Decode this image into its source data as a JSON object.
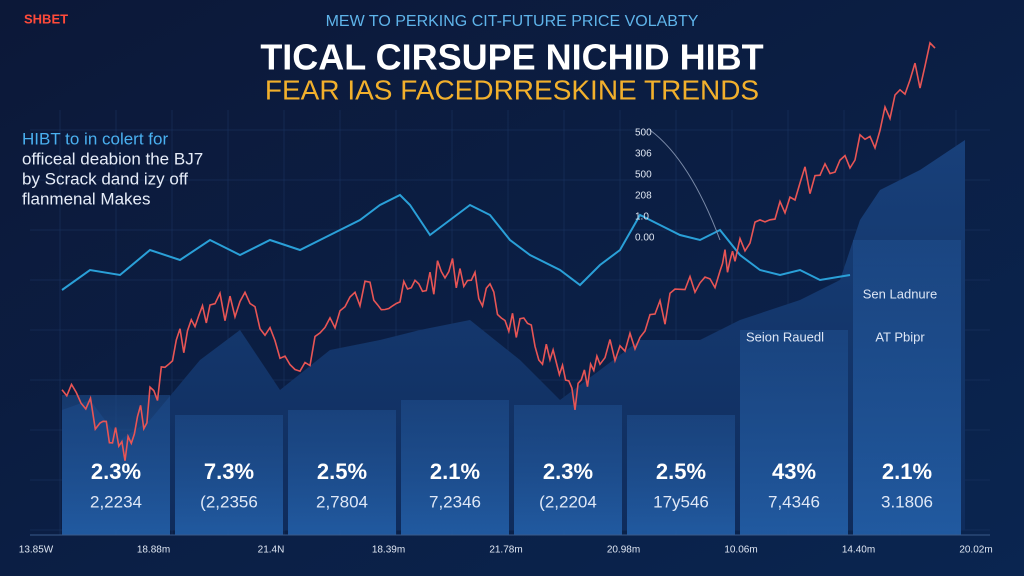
{
  "logo": "SHBET",
  "header": {
    "kicker": "MEW TO PERKING CIT-FUTURE PRICE VOLABTY",
    "title": "TICAL CIRSUPE NICHID HIBT",
    "subtitle": "FEAR IAS FACEDRRESKINE TRENDS"
  },
  "side_text": [
    "HIBT to in colert for",
    "officeal deabion the BJ7",
    "by Scrack dand izy off",
    "flanmenal Makes"
  ],
  "scale_labels": [
    "500",
    "306",
    "500",
    "208",
    "1.0",
    "0.00"
  ],
  "annotations": [
    "Sen Ladnure",
    "Seion Rauedl",
    "AT Pbipr"
  ],
  "panels": [
    {
      "percent": "2.3%",
      "value": "2,2234"
    },
    {
      "percent": "7.3%",
      "value": "(2,2356"
    },
    {
      "percent": "2.5%",
      "value": "2,7804"
    },
    {
      "percent": "2.1%",
      "value": "7,2346"
    },
    {
      "percent": "2.3%",
      "value": "(2,2204"
    },
    {
      "percent": "2.5%",
      "value": "17y546"
    },
    {
      "percent": "43%",
      "value": "7,4346"
    },
    {
      "percent": "2.1%",
      "value": "3.1806"
    }
  ],
  "x_labels": [
    "13.85W",
    "18.88m",
    "21.4N",
    "18.39m",
    "21.78m",
    "20.98m",
    "10.06m",
    "14.40m",
    "20.02m"
  ]
}
